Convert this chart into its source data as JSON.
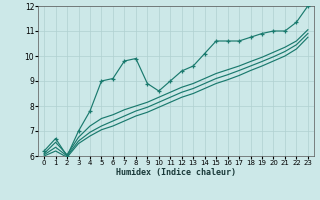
{
  "xlabel": "Humidex (Indice chaleur)",
  "bg_color": "#cce8e8",
  "grid_color": "#b0d0d0",
  "line_color": "#1a7a6e",
  "x": [
    0,
    1,
    2,
    3,
    4,
    5,
    6,
    7,
    8,
    9,
    10,
    11,
    12,
    13,
    14,
    15,
    16,
    17,
    18,
    19,
    20,
    21,
    22,
    23
  ],
  "line_marked": [
    6.2,
    6.7,
    6.0,
    7.0,
    7.8,
    9.0,
    9.1,
    9.8,
    9.9,
    8.9,
    8.6,
    9.0,
    9.4,
    9.6,
    10.1,
    10.6,
    10.6,
    10.6,
    10.75,
    10.9,
    11.0,
    11.0,
    11.35,
    12.0
  ],
  "line_a": [
    6.1,
    6.55,
    6.05,
    6.75,
    7.2,
    7.5,
    7.65,
    7.85,
    8.0,
    8.15,
    8.35,
    8.55,
    8.75,
    8.9,
    9.1,
    9.3,
    9.45,
    9.6,
    9.78,
    9.95,
    10.15,
    10.35,
    10.6,
    11.05
  ],
  "line_b": [
    6.05,
    6.35,
    6.0,
    6.6,
    6.95,
    7.2,
    7.4,
    7.6,
    7.8,
    7.95,
    8.15,
    8.35,
    8.55,
    8.7,
    8.9,
    9.1,
    9.25,
    9.42,
    9.6,
    9.78,
    9.97,
    10.18,
    10.45,
    10.9
  ],
  "line_c": [
    6.0,
    6.2,
    5.95,
    6.5,
    6.8,
    7.05,
    7.2,
    7.4,
    7.6,
    7.75,
    7.95,
    8.15,
    8.35,
    8.5,
    8.7,
    8.9,
    9.05,
    9.22,
    9.42,
    9.6,
    9.8,
    10.0,
    10.28,
    10.75
  ],
  "ylim": [
    6,
    12
  ],
  "xlim_min": -0.5,
  "xlim_max": 23.5,
  "yticks": [
    6,
    7,
    8,
    9,
    10,
    11,
    12
  ],
  "xticks": [
    0,
    1,
    2,
    3,
    4,
    5,
    6,
    7,
    8,
    9,
    10,
    11,
    12,
    13,
    14,
    15,
    16,
    17,
    18,
    19,
    20,
    21,
    22,
    23
  ]
}
